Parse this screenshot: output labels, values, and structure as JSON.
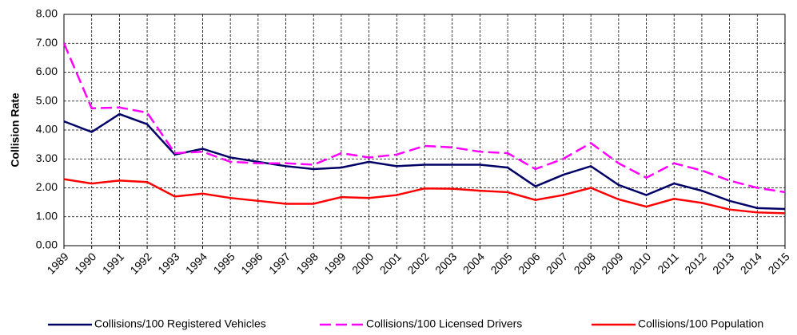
{
  "chart_data": {
    "type": "line",
    "y_label": "Collision Rate",
    "categories": [
      "1989",
      "1990",
      "1991",
      "1992",
      "1993",
      "1994",
      "1995",
      "1996",
      "1997",
      "1998",
      "1999",
      "2000",
      "2001",
      "2002",
      "2003",
      "2004",
      "2005",
      "2006",
      "2007",
      "2008",
      "2009",
      "2010",
      "2011",
      "2012",
      "2013",
      "2014",
      "2015"
    ],
    "series": [
      {
        "name": "Collisions/100 Registered Vehicles",
        "color": "#000066",
        "dashed": false,
        "values": [
          4.3,
          3.93,
          4.55,
          4.2,
          3.15,
          3.35,
          3.05,
          2.9,
          2.75,
          2.65,
          2.7,
          2.9,
          2.75,
          2.8,
          2.8,
          2.8,
          2.7,
          2.05,
          2.45,
          2.75,
          2.1,
          1.75,
          2.15,
          1.9,
          1.55,
          1.3,
          1.27
        ]
      },
      {
        "name": "Collisions/100 Licensed Drivers",
        "color": "#ff00ff",
        "dashed": true,
        "values": [
          7.0,
          4.75,
          4.78,
          4.6,
          3.2,
          3.25,
          2.9,
          2.85,
          2.85,
          2.8,
          3.2,
          3.05,
          3.15,
          3.45,
          3.4,
          3.25,
          3.2,
          2.65,
          3.0,
          3.55,
          2.85,
          2.35,
          2.85,
          2.6,
          2.25,
          2.0,
          1.85
        ]
      },
      {
        "name": "Collisions/100 Population",
        "color": "#ff0000",
        "dashed": false,
        "values": [
          2.3,
          2.15,
          2.25,
          2.2,
          1.7,
          1.8,
          1.65,
          1.55,
          1.45,
          1.45,
          1.68,
          1.65,
          1.75,
          1.98,
          1.97,
          1.9,
          1.85,
          1.58,
          1.75,
          2.0,
          1.6,
          1.35,
          1.62,
          1.48,
          1.25,
          1.15,
          1.12
        ]
      }
    ],
    "ylim": [
      0,
      8
    ],
    "yticks": [
      {
        "value": 0,
        "label": "0.00"
      },
      {
        "value": 1,
        "label": "1.00"
      },
      {
        "value": 2,
        "label": "2.00"
      },
      {
        "value": 3,
        "label": "3.00"
      },
      {
        "value": 4,
        "label": "4.00"
      },
      {
        "value": 5,
        "label": "5.00"
      },
      {
        "value": 6,
        "label": "6.00"
      },
      {
        "value": 7,
        "label": "7.00"
      },
      {
        "value": 8,
        "label": "8.00"
      }
    ],
    "grid": true,
    "legend": "bottom"
  }
}
